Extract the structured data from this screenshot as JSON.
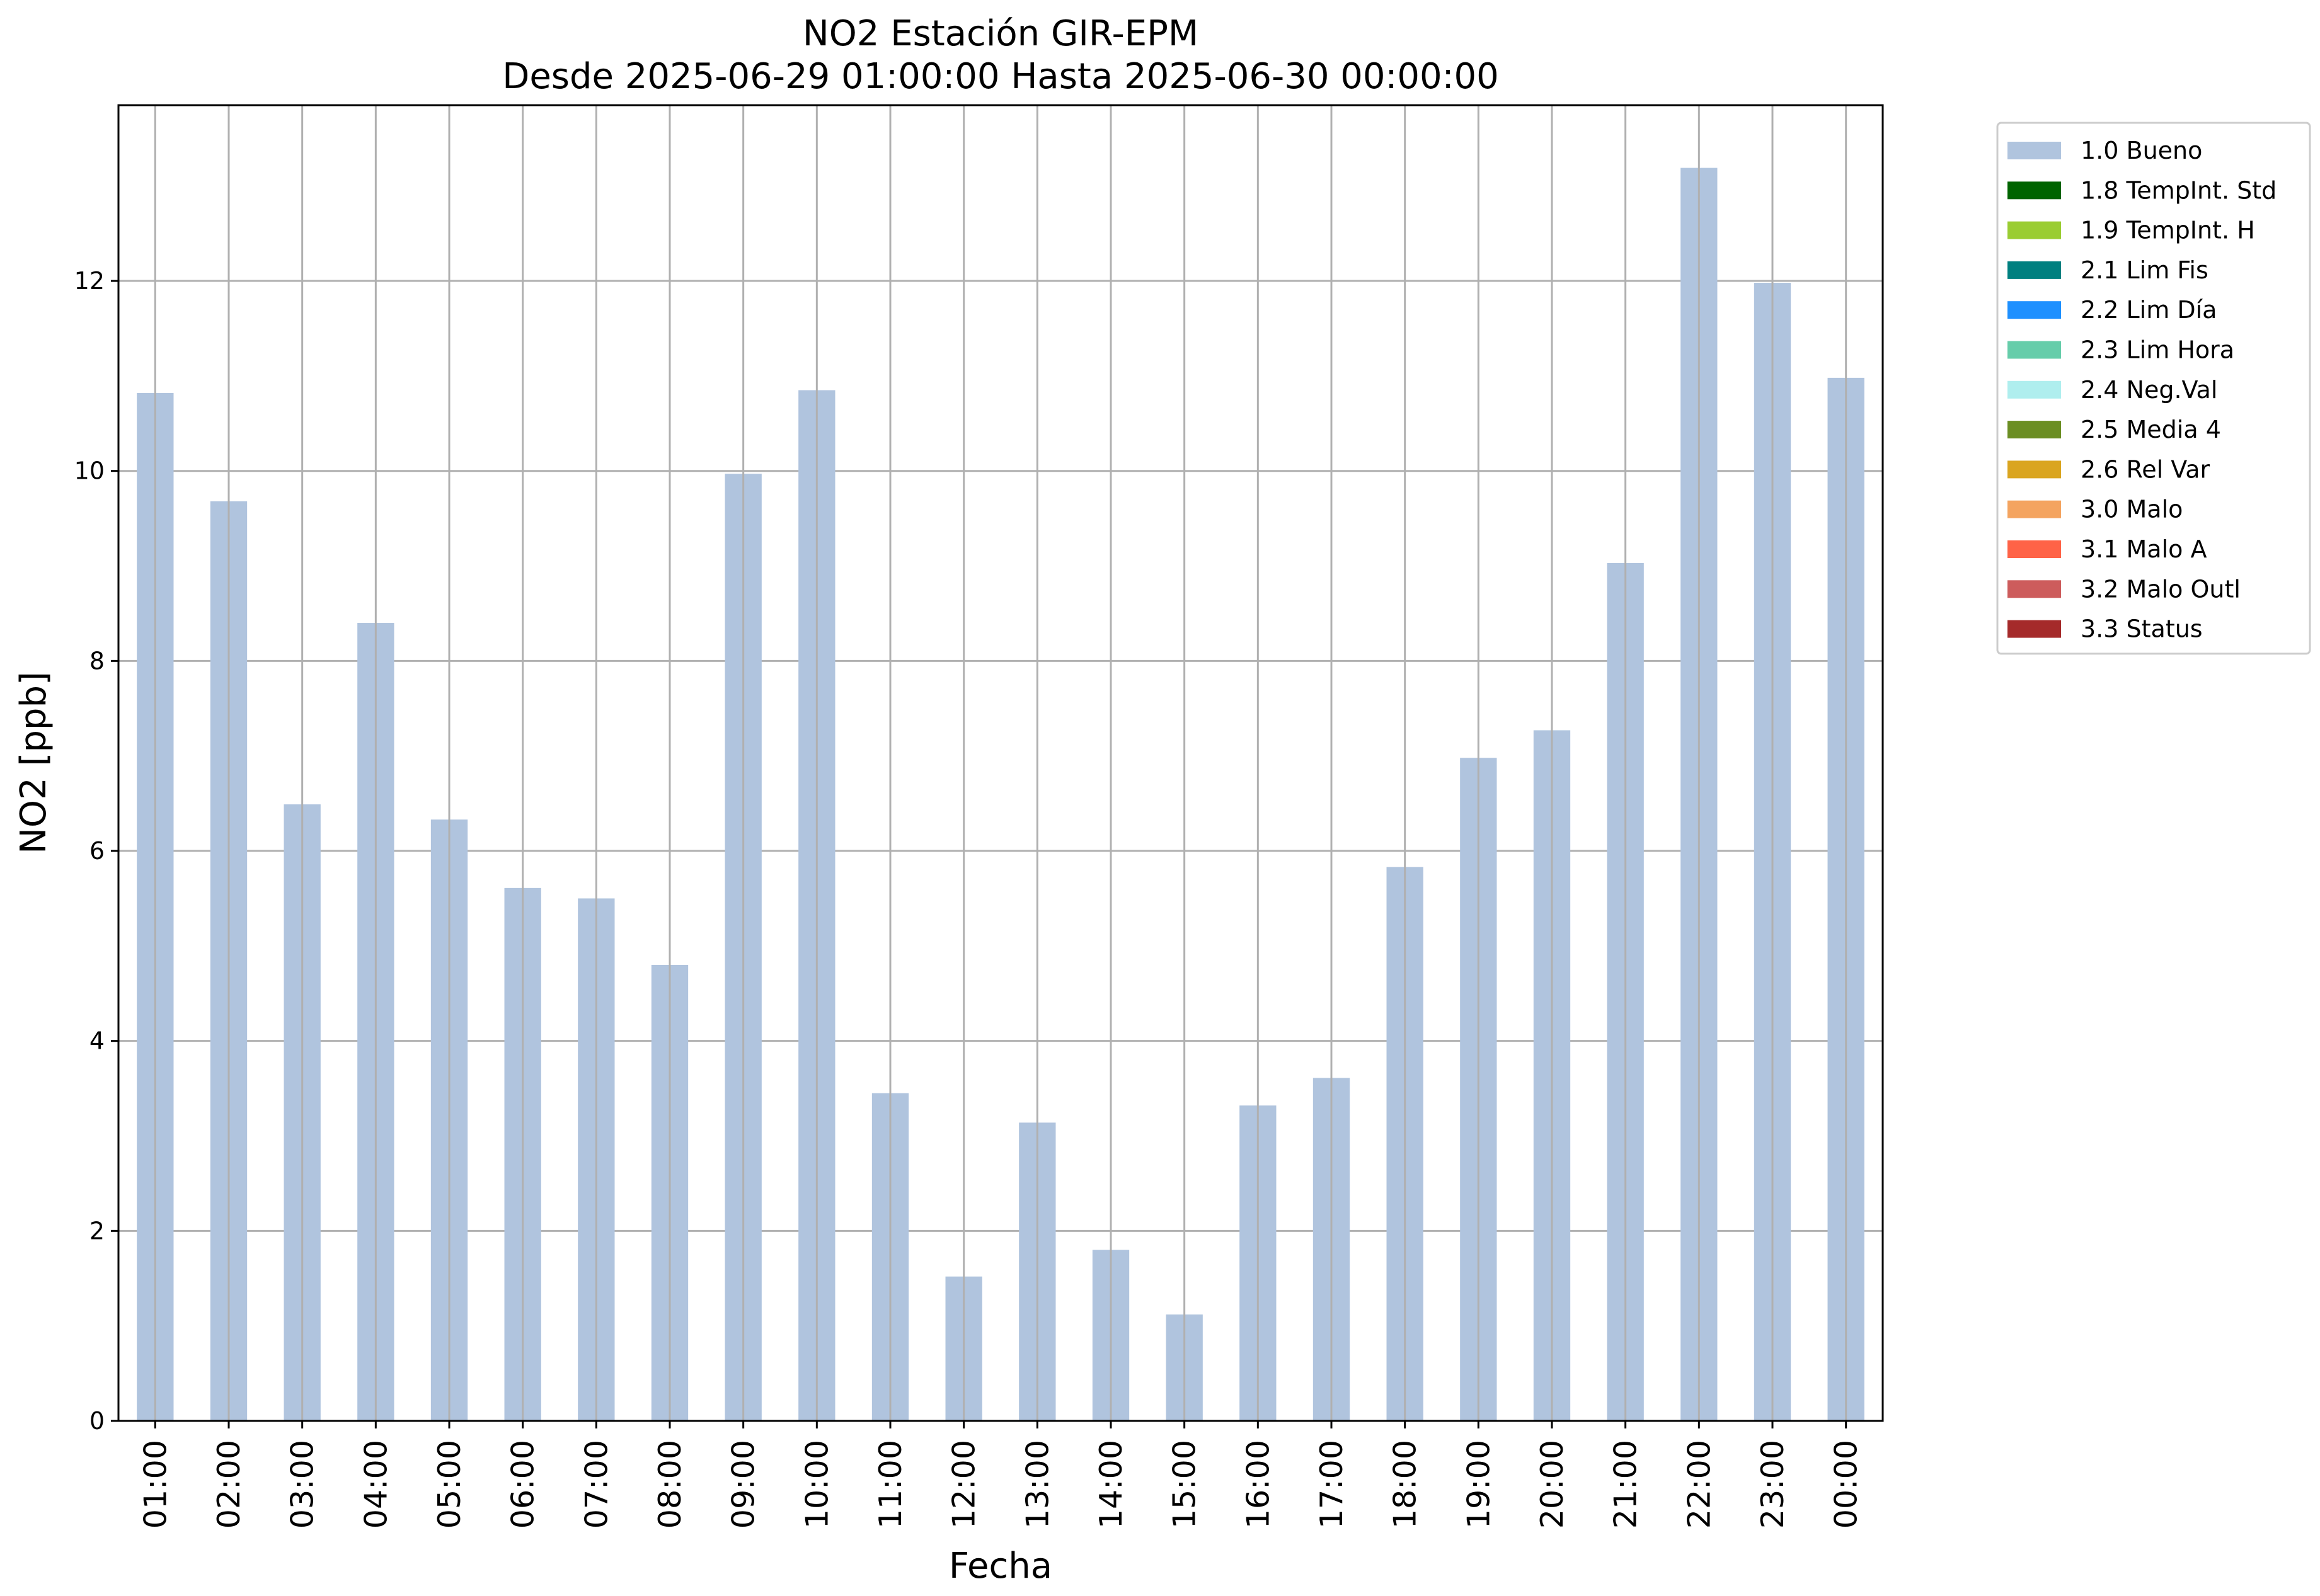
{
  "chart_data": {
    "type": "bar",
    "title": "NO2 Estación GIR-EPM",
    "subtitle": "Desde 2025-06-29 01:00:00 Hasta 2025-06-30 00:00:00",
    "xlabel": "Fecha",
    "ylabel": "NO2 [ppb]",
    "ylim": [
      0,
      13.85
    ],
    "yticks": [
      0,
      2,
      4,
      6,
      8,
      10,
      12
    ],
    "grid": true,
    "legend_position": "outside-top-right",
    "categories": [
      "01:00",
      "02:00",
      "03:00",
      "04:00",
      "05:00",
      "06:00",
      "07:00",
      "08:00",
      "09:00",
      "10:00",
      "11:00",
      "12:00",
      "13:00",
      "14:00",
      "15:00",
      "16:00",
      "17:00",
      "18:00",
      "19:00",
      "20:00",
      "21:00",
      "22:00",
      "23:00",
      "00:00"
    ],
    "series": [
      {
        "name": "1.0 Bueno",
        "color": "#b0c4de",
        "values": [
          10.82,
          9.68,
          6.49,
          8.4,
          6.33,
          5.61,
          5.5,
          4.8,
          9.97,
          10.85,
          3.45,
          1.52,
          3.14,
          1.8,
          1.12,
          3.32,
          3.61,
          5.83,
          6.98,
          7.27,
          9.03,
          13.19,
          11.98,
          10.98
        ]
      }
    ],
    "legend": [
      {
        "label": "1.0 Bueno",
        "color": "#b0c4de"
      },
      {
        "label": "1.8 TempInt. Std",
        "color": "#006400"
      },
      {
        "label": "1.9 TempInt. H",
        "color": "#9acd32"
      },
      {
        "label": "2.1 Lim Fis",
        "color": "#008080"
      },
      {
        "label": "2.2 Lim Día",
        "color": "#1e90ff"
      },
      {
        "label": "2.3 Lim Hora",
        "color": "#66cdaa"
      },
      {
        "label": "2.4 Neg.Val",
        "color": "#afeeee"
      },
      {
        "label": "2.5 Media 4",
        "color": "#6b8e23"
      },
      {
        "label": "2.6 Rel Var",
        "color": "#daa520"
      },
      {
        "label": "3.0 Malo",
        "color": "#f4a460"
      },
      {
        "label": "3.1 Malo A",
        "color": "#ff6347"
      },
      {
        "label": "3.2 Malo Outl",
        "color": "#cd5c5c"
      },
      {
        "label": "3.3 Status",
        "color": "#a52a2a"
      }
    ]
  }
}
